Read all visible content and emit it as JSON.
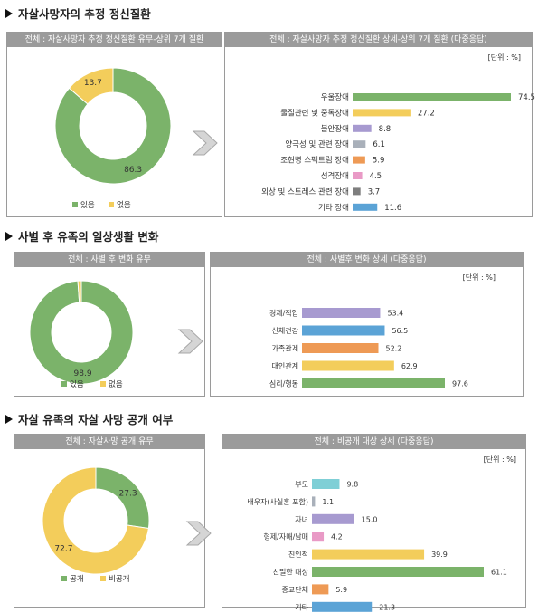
{
  "sections": [
    {
      "title": "자살사망자의 추정 정신질환",
      "pie": {
        "header": "전체 : 자살사망자 추정 정신질환 유무-상위 7개 질환",
        "slices": [
          {
            "label": "있음",
            "value": 86.3,
            "color": "#7bb36a"
          },
          {
            "label": "없음",
            "value": 13.7,
            "color": "#f3cd5b"
          }
        ]
      },
      "bars": {
        "header": "전체 : 자살사망자 추정 정신질환 상세-상위 7개 질환 (다중응답)",
        "unit": "[단위 : %]",
        "items": [
          {
            "label": "우울장애",
            "value": 74.5,
            "color": "#7bb36a"
          },
          {
            "label": "물질관련 및 중독장애",
            "value": 27.2,
            "color": "#f3cd5b"
          },
          {
            "label": "불안장애",
            "value": 8.8,
            "color": "#a79ad0"
          },
          {
            "label": "양극성 및 관련 장애",
            "value": 6.1,
            "color": "#a9b0ba"
          },
          {
            "label": "조현병 스펙트럼 장애",
            "value": 5.9,
            "color": "#ee9a55"
          },
          {
            "label": "성격장애",
            "value": 4.5,
            "color": "#e99ac6"
          },
          {
            "label": "외상 및 스트레스 관련 장애",
            "value": 3.7,
            "color": "#7e7e7e"
          },
          {
            "label": "기타 장애",
            "value": 11.6,
            "color": "#5ba3d6"
          }
        ]
      }
    },
    {
      "title": "사별 후 유족의 일상생활 변화",
      "pie": {
        "header": "전체 : 사별 후 변화 유무",
        "slices": [
          {
            "label": "있음",
            "value": 98.9,
            "color": "#7bb36a"
          },
          {
            "label": "없음",
            "value": 1.1,
            "color": "#f3cd5b"
          }
        ]
      },
      "bars": {
        "header": "전체 : 사별후 변화 상세 (다중응답)",
        "unit": "[단위 : %]",
        "items": [
          {
            "label": "경제/직업",
            "value": 53.4,
            "color": "#a79ad0"
          },
          {
            "label": "신체건강",
            "value": 56.5,
            "color": "#5ba3d6"
          },
          {
            "label": "가족관계",
            "value": 52.2,
            "color": "#ee9a55"
          },
          {
            "label": "대인관계",
            "value": 62.9,
            "color": "#f3cd5b"
          },
          {
            "label": "심리/행동",
            "value": 97.6,
            "color": "#7bb36a"
          }
        ]
      }
    },
    {
      "title": "자살 유족의 자살 사망 공개 여부",
      "pie": {
        "header": "전체 : 자살사망 공개 유무",
        "slices": [
          {
            "label": "공개",
            "value": 27.3,
            "color": "#7bb36a"
          },
          {
            "label": "비공개",
            "value": 72.7,
            "color": "#f3cd5b"
          }
        ]
      },
      "bars": {
        "header": "전체 : 비공개 대상 상세 (다중응답)",
        "unit": "[단위 : %]",
        "items": [
          {
            "label": "부모",
            "value": 9.8,
            "color": "#7fcfd6"
          },
          {
            "label": "배우자(사실혼 포함)",
            "value": 1.1,
            "color": "#a9b0ba"
          },
          {
            "label": "자녀",
            "value": 15.0,
            "color": "#a79ad0"
          },
          {
            "label": "형제/자매/남매",
            "value": 4.2,
            "color": "#e99ac6"
          },
          {
            "label": "친인척",
            "value": 39.9,
            "color": "#f3cd5b"
          },
          {
            "label": "친밀한 대상",
            "value": 61.1,
            "color": "#7bb36a"
          },
          {
            "label": "종교단체",
            "value": 5.9,
            "color": "#ee9a55"
          },
          {
            "label": "기타",
            "value": 21.3,
            "color": "#5ba3d6"
          }
        ]
      }
    }
  ],
  "chart_data": [
    {
      "type": "pie",
      "title": "전체 : 자살사망자 추정 정신질환 유무-상위 7개 질환",
      "categories": [
        "있음",
        "없음"
      ],
      "values": [
        86.3,
        13.7
      ]
    },
    {
      "type": "bar",
      "title": "전체 : 자살사망자 추정 정신질환 상세-상위 7개 질환 (다중응답)",
      "categories": [
        "우울장애",
        "물질관련 및 중독장애",
        "불안장애",
        "양극성 및 관련 장애",
        "조현병 스펙트럼 장애",
        "성격장애",
        "외상 및 스트레스 관련 장애",
        "기타 장애"
      ],
      "values": [
        74.5,
        27.2,
        8.8,
        6.1,
        5.9,
        4.5,
        3.7,
        11.6
      ],
      "ylabel": "[단위 : %]"
    },
    {
      "type": "pie",
      "title": "전체 : 사별 후 변화 유무",
      "categories": [
        "있음",
        "없음"
      ],
      "values": [
        98.9,
        1.1
      ]
    },
    {
      "type": "bar",
      "title": "전체 : 사별후 변화 상세 (다중응답)",
      "categories": [
        "경제/직업",
        "신체건강",
        "가족관계",
        "대인관계",
        "심리/행동"
      ],
      "values": [
        53.4,
        56.5,
        52.2,
        62.9,
        97.6
      ],
      "ylabel": "[단위 : %]"
    },
    {
      "type": "pie",
      "title": "전체 : 자살사망 공개 유무",
      "categories": [
        "공개",
        "비공개"
      ],
      "values": [
        27.3,
        72.7
      ]
    },
    {
      "type": "bar",
      "title": "전체 : 비공개 대상 상세 (다중응답)",
      "categories": [
        "부모",
        "배우자(사실혼 포함)",
        "자녀",
        "형제/자매/남매",
        "친인척",
        "친밀한 대상",
        "종교단체",
        "기타"
      ],
      "values": [
        9.8,
        1.1,
        15.0,
        4.2,
        39.9,
        61.1,
        5.9,
        21.3
      ],
      "ylabel": "[단위 : %]"
    }
  ]
}
